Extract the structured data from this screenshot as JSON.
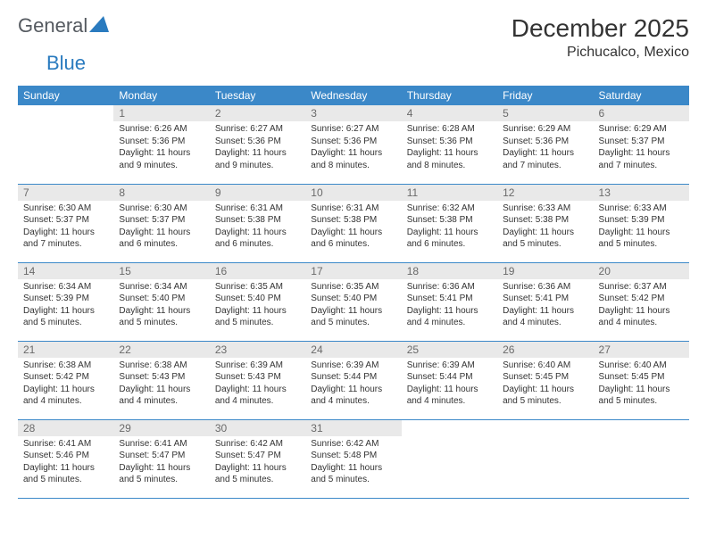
{
  "brand": {
    "text1": "General",
    "text2": "Blue"
  },
  "title": "December 2025",
  "location": "Pichucalco, Mexico",
  "colors": {
    "header_bg": "#3b88c8",
    "header_text": "#ffffff",
    "daynum_bg": "#e9e9e9",
    "daynum_text": "#6a6a6a",
    "cell_border": "#3b88c8",
    "body_text": "#333333",
    "logo_gray": "#555a60",
    "logo_blue": "#2a7bbf"
  },
  "weekdays": [
    "Sunday",
    "Monday",
    "Tuesday",
    "Wednesday",
    "Thursday",
    "Friday",
    "Saturday"
  ],
  "first_weekday_index": 1,
  "days": [
    {
      "n": 1,
      "sunrise": "6:26 AM",
      "sunset": "5:36 PM",
      "daylight": "11 hours and 9 minutes."
    },
    {
      "n": 2,
      "sunrise": "6:27 AM",
      "sunset": "5:36 PM",
      "daylight": "11 hours and 9 minutes."
    },
    {
      "n": 3,
      "sunrise": "6:27 AM",
      "sunset": "5:36 PM",
      "daylight": "11 hours and 8 minutes."
    },
    {
      "n": 4,
      "sunrise": "6:28 AM",
      "sunset": "5:36 PM",
      "daylight": "11 hours and 8 minutes."
    },
    {
      "n": 5,
      "sunrise": "6:29 AM",
      "sunset": "5:36 PM",
      "daylight": "11 hours and 7 minutes."
    },
    {
      "n": 6,
      "sunrise": "6:29 AM",
      "sunset": "5:37 PM",
      "daylight": "11 hours and 7 minutes."
    },
    {
      "n": 7,
      "sunrise": "6:30 AM",
      "sunset": "5:37 PM",
      "daylight": "11 hours and 7 minutes."
    },
    {
      "n": 8,
      "sunrise": "6:30 AM",
      "sunset": "5:37 PM",
      "daylight": "11 hours and 6 minutes."
    },
    {
      "n": 9,
      "sunrise": "6:31 AM",
      "sunset": "5:38 PM",
      "daylight": "11 hours and 6 minutes."
    },
    {
      "n": 10,
      "sunrise": "6:31 AM",
      "sunset": "5:38 PM",
      "daylight": "11 hours and 6 minutes."
    },
    {
      "n": 11,
      "sunrise": "6:32 AM",
      "sunset": "5:38 PM",
      "daylight": "11 hours and 6 minutes."
    },
    {
      "n": 12,
      "sunrise": "6:33 AM",
      "sunset": "5:38 PM",
      "daylight": "11 hours and 5 minutes."
    },
    {
      "n": 13,
      "sunrise": "6:33 AM",
      "sunset": "5:39 PM",
      "daylight": "11 hours and 5 minutes."
    },
    {
      "n": 14,
      "sunrise": "6:34 AM",
      "sunset": "5:39 PM",
      "daylight": "11 hours and 5 minutes."
    },
    {
      "n": 15,
      "sunrise": "6:34 AM",
      "sunset": "5:40 PM",
      "daylight": "11 hours and 5 minutes."
    },
    {
      "n": 16,
      "sunrise": "6:35 AM",
      "sunset": "5:40 PM",
      "daylight": "11 hours and 5 minutes."
    },
    {
      "n": 17,
      "sunrise": "6:35 AM",
      "sunset": "5:40 PM",
      "daylight": "11 hours and 5 minutes."
    },
    {
      "n": 18,
      "sunrise": "6:36 AM",
      "sunset": "5:41 PM",
      "daylight": "11 hours and 4 minutes."
    },
    {
      "n": 19,
      "sunrise": "6:36 AM",
      "sunset": "5:41 PM",
      "daylight": "11 hours and 4 minutes."
    },
    {
      "n": 20,
      "sunrise": "6:37 AM",
      "sunset": "5:42 PM",
      "daylight": "11 hours and 4 minutes."
    },
    {
      "n": 21,
      "sunrise": "6:38 AM",
      "sunset": "5:42 PM",
      "daylight": "11 hours and 4 minutes."
    },
    {
      "n": 22,
      "sunrise": "6:38 AM",
      "sunset": "5:43 PM",
      "daylight": "11 hours and 4 minutes."
    },
    {
      "n": 23,
      "sunrise": "6:39 AM",
      "sunset": "5:43 PM",
      "daylight": "11 hours and 4 minutes."
    },
    {
      "n": 24,
      "sunrise": "6:39 AM",
      "sunset": "5:44 PM",
      "daylight": "11 hours and 4 minutes."
    },
    {
      "n": 25,
      "sunrise": "6:39 AM",
      "sunset": "5:44 PM",
      "daylight": "11 hours and 4 minutes."
    },
    {
      "n": 26,
      "sunrise": "6:40 AM",
      "sunset": "5:45 PM",
      "daylight": "11 hours and 5 minutes."
    },
    {
      "n": 27,
      "sunrise": "6:40 AM",
      "sunset": "5:45 PM",
      "daylight": "11 hours and 5 minutes."
    },
    {
      "n": 28,
      "sunrise": "6:41 AM",
      "sunset": "5:46 PM",
      "daylight": "11 hours and 5 minutes."
    },
    {
      "n": 29,
      "sunrise": "6:41 AM",
      "sunset": "5:47 PM",
      "daylight": "11 hours and 5 minutes."
    },
    {
      "n": 30,
      "sunrise": "6:42 AM",
      "sunset": "5:47 PM",
      "daylight": "11 hours and 5 minutes."
    },
    {
      "n": 31,
      "sunrise": "6:42 AM",
      "sunset": "5:48 PM",
      "daylight": "11 hours and 5 minutes."
    }
  ],
  "labels": {
    "sunrise": "Sunrise:",
    "sunset": "Sunset:",
    "daylight": "Daylight:"
  }
}
